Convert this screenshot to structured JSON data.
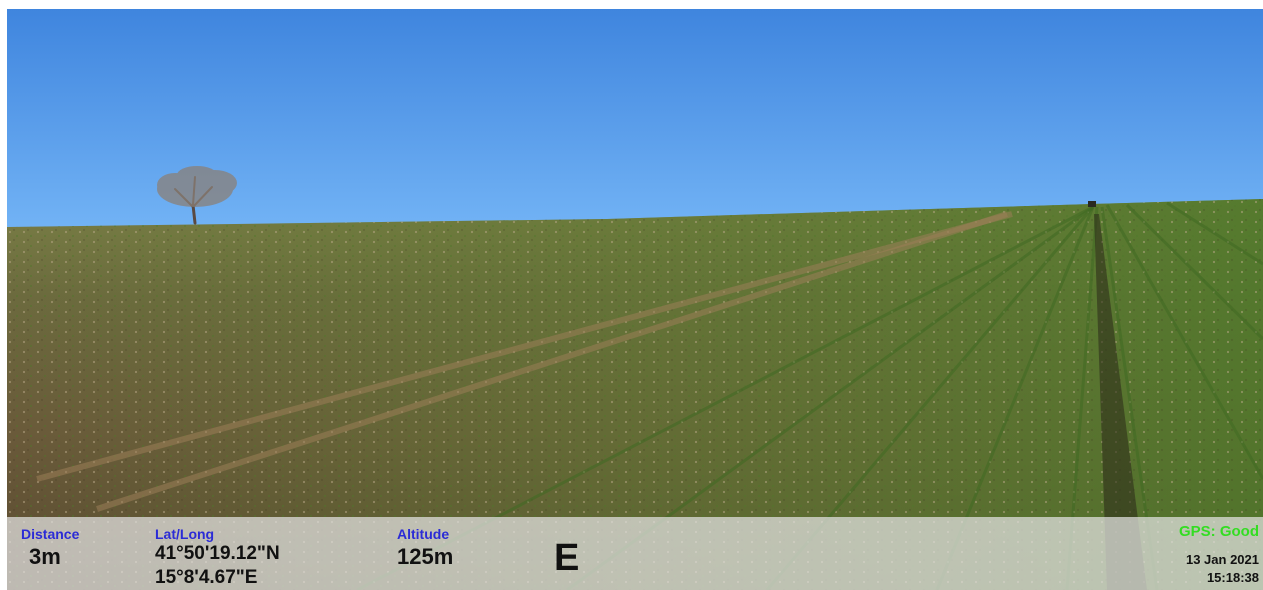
{
  "overlay": {
    "distance": {
      "label": "Distance",
      "value": "3m"
    },
    "position": {
      "label": "Lat/Long",
      "lat": "41°50'19.12\"N",
      "long": "15°8'4.67\"E"
    },
    "altitude": {
      "label": "Altitude",
      "value": "125m"
    },
    "heading": "E",
    "gps_status": "GPS: Good",
    "date": "13 Jan 2021",
    "time": "15:18:38"
  },
  "colors": {
    "label_blue": "#2b2bd6",
    "gps_green": "#33dd22",
    "sky_top": "#3f87e0",
    "sky_bottom": "#6fb0f4",
    "field_soil": "#6b5a3c",
    "field_green": "#5d7a2e"
  }
}
